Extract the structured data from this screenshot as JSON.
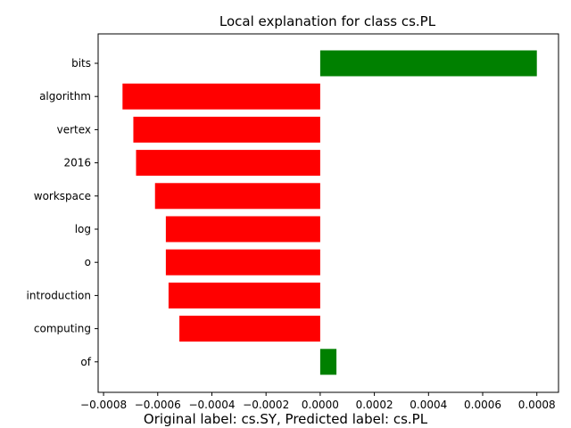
{
  "chart_data": {
    "type": "bar",
    "orientation": "horizontal",
    "title": "Local explanation for class cs.PL",
    "caption": "Original label: cs.SY, Predicted label: cs.PL",
    "xlabel": "",
    "ylabel": "",
    "categories": [
      "bits",
      "algorithm",
      "vertex",
      "2016",
      "workspace",
      "log",
      "o",
      "introduction",
      "computing",
      "of"
    ],
    "values": [
      0.0008,
      -0.00073,
      -0.00069,
      -0.00068,
      -0.00061,
      -0.00057,
      -0.00057,
      -0.00056,
      -0.00052,
      6e-05
    ],
    "xlim": [
      -0.00082,
      0.00088
    ],
    "xticks": [
      -0.0008,
      -0.0006,
      -0.0004,
      -0.0002,
      0.0,
      0.0002,
      0.0004,
      0.0006,
      0.0008
    ],
    "xtick_labels": [
      "−0.0008",
      "−0.0006",
      "−0.0004",
      "−0.0002",
      "0.0000",
      "0.0002",
      "0.0004",
      "0.0006",
      "0.0008"
    ],
    "positive_color": "#008000",
    "negative_color": "#ff0000",
    "grid": false
  }
}
